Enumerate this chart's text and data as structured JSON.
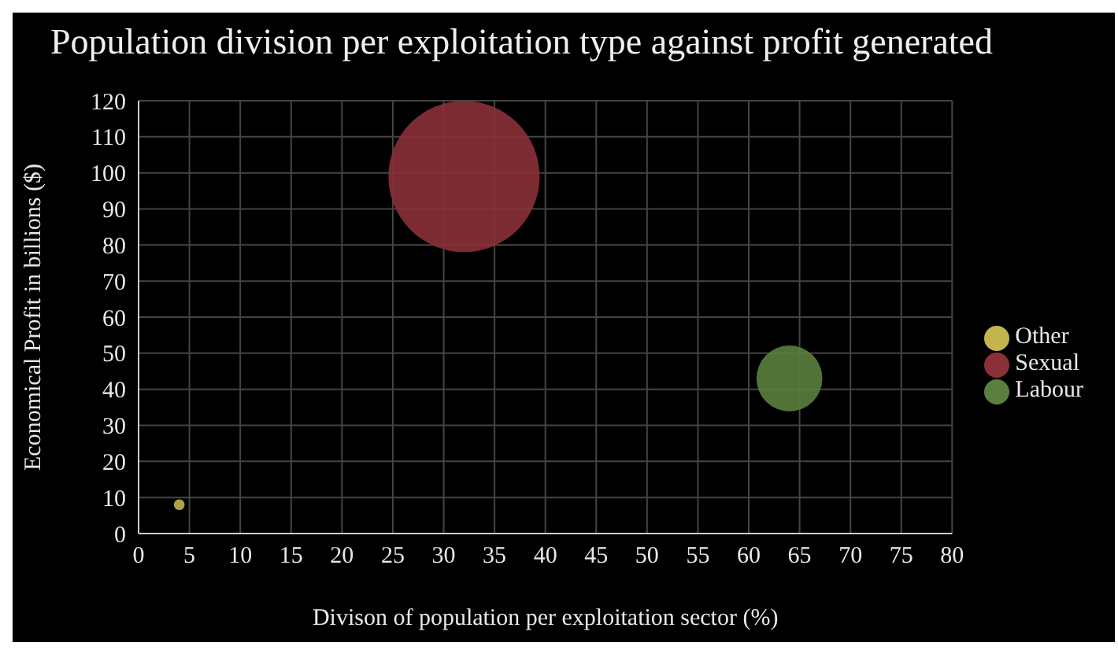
{
  "chart_data": {
    "type": "bubble",
    "title": "Population division per exploitation type against profit generated",
    "xlabel": "Divison of population per exploitation sector (%)",
    "ylabel": "Economical Profit in billions ($)",
    "series": [
      {
        "name": "Other",
        "color": "#c4b44f",
        "x": [
          4
        ],
        "values": [
          8
        ],
        "sizes": [
          0.005
        ]
      },
      {
        "name": "Sexual",
        "color": "#8b3039",
        "x": [
          32
        ],
        "values": [
          99
        ],
        "sizes": [
          1
        ]
      },
      {
        "name": "Labour",
        "color": "#5a7f3e",
        "x": [
          64
        ],
        "values": [
          43
        ],
        "sizes": [
          0.19
        ]
      }
    ],
    "xlim": [
      0,
      80
    ],
    "xticks": [
      0,
      5,
      10,
      15,
      20,
      25,
      30,
      35,
      40,
      45,
      50,
      55,
      60,
      65,
      70,
      75,
      80
    ],
    "ylim": [
      0,
      120
    ],
    "yticks": [
      0,
      10,
      20,
      30,
      40,
      50,
      60,
      70,
      80,
      90,
      100,
      110,
      120
    ],
    "grid": true,
    "legend": "right"
  }
}
